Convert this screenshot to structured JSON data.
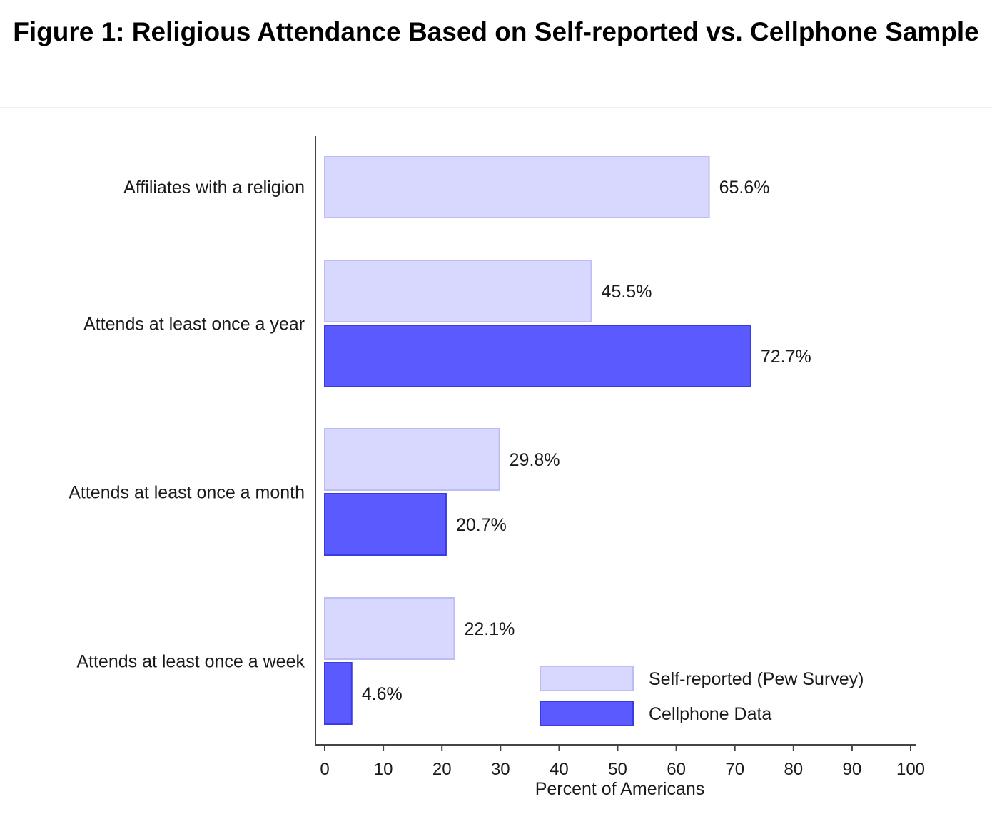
{
  "title": "Figure 1: Religious Attendance Based on Self-reported vs. Cellphone Sample",
  "colors": {
    "self_fill": "#d8d8ff",
    "self_stroke": "#bdbdf5",
    "cell_fill": "#5a5aff",
    "cell_stroke": "#3a3ae6",
    "axis": "#444444"
  },
  "chart_data": {
    "type": "bar",
    "orientation": "horizontal",
    "categories": [
      "Affiliates with a religion",
      "Attends at least once a year",
      "Attends at least once a month",
      "Attends at least once a week"
    ],
    "series": [
      {
        "name": "Self-reported (Pew Survey)",
        "values": [
          65.6,
          45.5,
          29.8,
          22.1
        ],
        "labels": [
          "65.6%",
          "45.5%",
          "29.8%",
          "22.1%"
        ]
      },
      {
        "name": "Cellphone Data",
        "values": [
          null,
          72.7,
          20.7,
          4.6
        ],
        "labels": [
          null,
          "72.7%",
          "20.7%",
          "4.6%"
        ]
      }
    ],
    "xlabel": "Percent of Americans",
    "ylabel": "",
    "xlim": [
      0,
      100
    ],
    "xticks": [
      0,
      10,
      20,
      30,
      40,
      50,
      60,
      70,
      80,
      90,
      100
    ],
    "grid": false,
    "legend_position": "bottom-right"
  }
}
